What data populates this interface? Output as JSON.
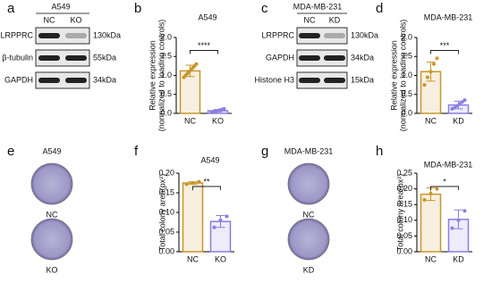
{
  "blots": [
    {
      "panel": "a",
      "title": "A549",
      "lanes": [
        "NC",
        "KO"
      ],
      "rows": [
        {
          "protein": "LRPPRC",
          "size": "130kDa"
        },
        {
          "protein": "β-tubulin",
          "size": "55kDa"
        },
        {
          "protein": "GAPDH",
          "size": "34kDa"
        }
      ]
    },
    {
      "panel": "c",
      "title": "MDA-MB-231",
      "lanes": [
        "NC",
        "KD"
      ],
      "rows": [
        {
          "protein": "LRPPRC",
          "size": "130kDa"
        },
        {
          "protein": "GAPDH",
          "size": "34kDa"
        },
        {
          "protein": "Histone H3",
          "size": "15kDa"
        }
      ]
    }
  ],
  "colonies": [
    {
      "panel": "e",
      "title": "A549",
      "labels": [
        "NC",
        "KO"
      ]
    },
    {
      "panel": "g",
      "title": "MDA-MB-231",
      "labels": [
        "NC",
        "KD"
      ]
    }
  ],
  "chart_data": [
    {
      "type": "bar",
      "panel": "b",
      "title": "A549",
      "y_label": [
        "Relative expression",
        "(normalized to loading controls)"
      ],
      "categories": [
        "NC",
        "KO"
      ],
      "values": [
        1.12,
        0.07
      ],
      "errors": [
        0.15,
        0.03
      ],
      "colors": [
        "#c8962a",
        "#8a7fe0"
      ],
      "points": [
        [
          0.95,
          1.0,
          1.05,
          1.1,
          1.15,
          1.2,
          1.25,
          1.3
        ],
        [
          0.03,
          0.05,
          0.06,
          0.08,
          0.1,
          0.12
        ]
      ],
      "annotation": "****",
      "ylim": [
        0,
        2
      ],
      "yticks": [
        {
          "value": 0,
          "label": "0.0"
        },
        0.5,
        {
          "value": 1,
          "label": "1.0"
        },
        1.5,
        {
          "value": 2,
          "label": "2.0"
        }
      ]
    },
    {
      "type": "bar",
      "panel": "d",
      "title": "MDA-MB-231",
      "y_label": [
        "Relative expression",
        "(normalized to loading controls)"
      ],
      "categories": [
        "NC",
        "KD"
      ],
      "values": [
        1.1,
        0.22
      ],
      "errors": [
        0.25,
        0.1
      ],
      "colors": [
        "#c8962a",
        "#8a7fe0"
      ],
      "points": [
        [
          0.75,
          0.95,
          1.1,
          1.3,
          1.45
        ],
        [
          0.12,
          0.15,
          0.2,
          0.25,
          0.3,
          0.35
        ]
      ],
      "annotation": "***",
      "ylim": [
        0,
        2
      ],
      "yticks": [
        {
          "value": 0,
          "label": "0.0"
        },
        0.5,
        {
          "value": 1,
          "label": "1.0"
        },
        1.5,
        {
          "value": 2,
          "label": "2.0"
        }
      ]
    },
    {
      "type": "bar",
      "panel": "f",
      "title": "A549",
      "y_label": [
        "Total colony area(px²)"
      ],
      "categories": [
        "NC",
        "KO"
      ],
      "values": [
        0.175,
        0.077
      ],
      "errors": [
        0.003,
        0.015
      ],
      "colors": [
        "#c8962a",
        "#8a7fe0"
      ],
      "points": [
        [
          0.172,
          0.175,
          0.178
        ],
        [
          0.062,
          0.08,
          0.09
        ]
      ],
      "annotation": "**",
      "ylim": [
        0,
        0.2
      ],
      "yticks": [
        {
          "value": 0,
          "label": "0.00"
        },
        0.05,
        {
          "value": 0.1,
          "label": "0.10"
        },
        0.15,
        {
          "value": 0.2,
          "label": "0.20"
        }
      ]
    },
    {
      "type": "bar",
      "panel": "h",
      "title": "MDA-MB-231",
      "y_label": [
        "Total colony area(px²)"
      ],
      "categories": [
        "NC",
        "KD"
      ],
      "values": [
        0.183,
        0.103
      ],
      "errors": [
        0.02,
        0.03
      ],
      "colors": [
        "#c8962a",
        "#8a7fe0"
      ],
      "points": [
        [
          0.165,
          0.185,
          0.2
        ],
        [
          0.075,
          0.1,
          0.13
        ]
      ],
      "annotation": "*",
      "ylim": [
        0,
        0.25
      ],
      "yticks": [
        {
          "value": 0,
          "label": "0.00"
        },
        0.05,
        {
          "value": 0.1,
          "label": "0.10"
        },
        0.15,
        {
          "value": 0.2,
          "label": "0.20"
        },
        0.25
      ]
    }
  ]
}
